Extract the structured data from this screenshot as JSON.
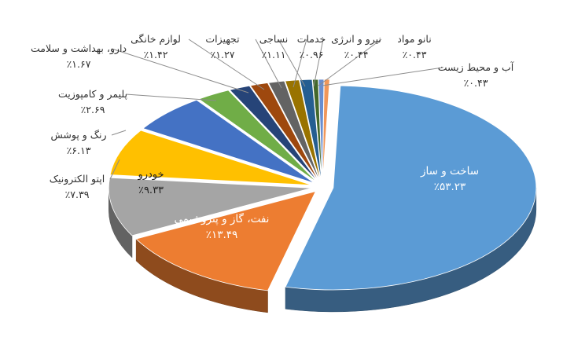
{
  "chart_data": {
    "type": "pie",
    "style": "3d-exploded",
    "title": "",
    "slices": [
      {
        "label": "ساخت و ساز",
        "value": 53.23,
        "value_label": "٪۵۳.۲۳",
        "color": "#5b9bd5"
      },
      {
        "label": "نفت، گاز و پتروشیمی",
        "value": 13.49,
        "value_label": "٪۱۳.۴۹",
        "color": "#ed7d31"
      },
      {
        "label": "خودرو",
        "value": 9.33,
        "value_label": "٪۹.۳۳",
        "color": "#a5a5a5"
      },
      {
        "label": "اپتو الکترونیک",
        "value": 7.39,
        "value_label": "٪۷.۳۹",
        "color": "#ffc000"
      },
      {
        "label": "رنگ و پوشش",
        "value": 6.13,
        "value_label": "٪۶.۱۳",
        "color": "#4472c4"
      },
      {
        "label": "پلیمر و کامپوزیت",
        "value": 2.69,
        "value_label": "٪۲.۶۹",
        "color": "#70ad47"
      },
      {
        "label": "دارو، بهداشت و سلامت",
        "value": 1.67,
        "value_label": "٪۱.۶۷",
        "color": "#264478"
      },
      {
        "label": "لوازم خانگی",
        "value": 1.42,
        "value_label": "٪۱.۴۲",
        "color": "#9e480e"
      },
      {
        "label": "تجهیزات",
        "value": 1.27,
        "value_label": "٪۱.۲۷",
        "color": "#636363"
      },
      {
        "label": "نساجی",
        "value": 1.11,
        "value_label": "٪۱.۱۱",
        "color": "#997300"
      },
      {
        "label": "خدمات",
        "value": 0.96,
        "value_label": "٪۰.۹۶",
        "color": "#255e91"
      },
      {
        "label": "نیرو و انرژی",
        "value": 0.44,
        "value_label": "٪۰.۴۴",
        "color": "#43682b"
      },
      {
        "label": "نانو مواد",
        "value": 0.43,
        "value_label": "٪۰.۴۳",
        "color": "#698ed0"
      },
      {
        "label": "آب و محیط زیست",
        "value": 0.43,
        "value_label": "٪۰.۴۳",
        "color": "#f1975a"
      }
    ]
  }
}
